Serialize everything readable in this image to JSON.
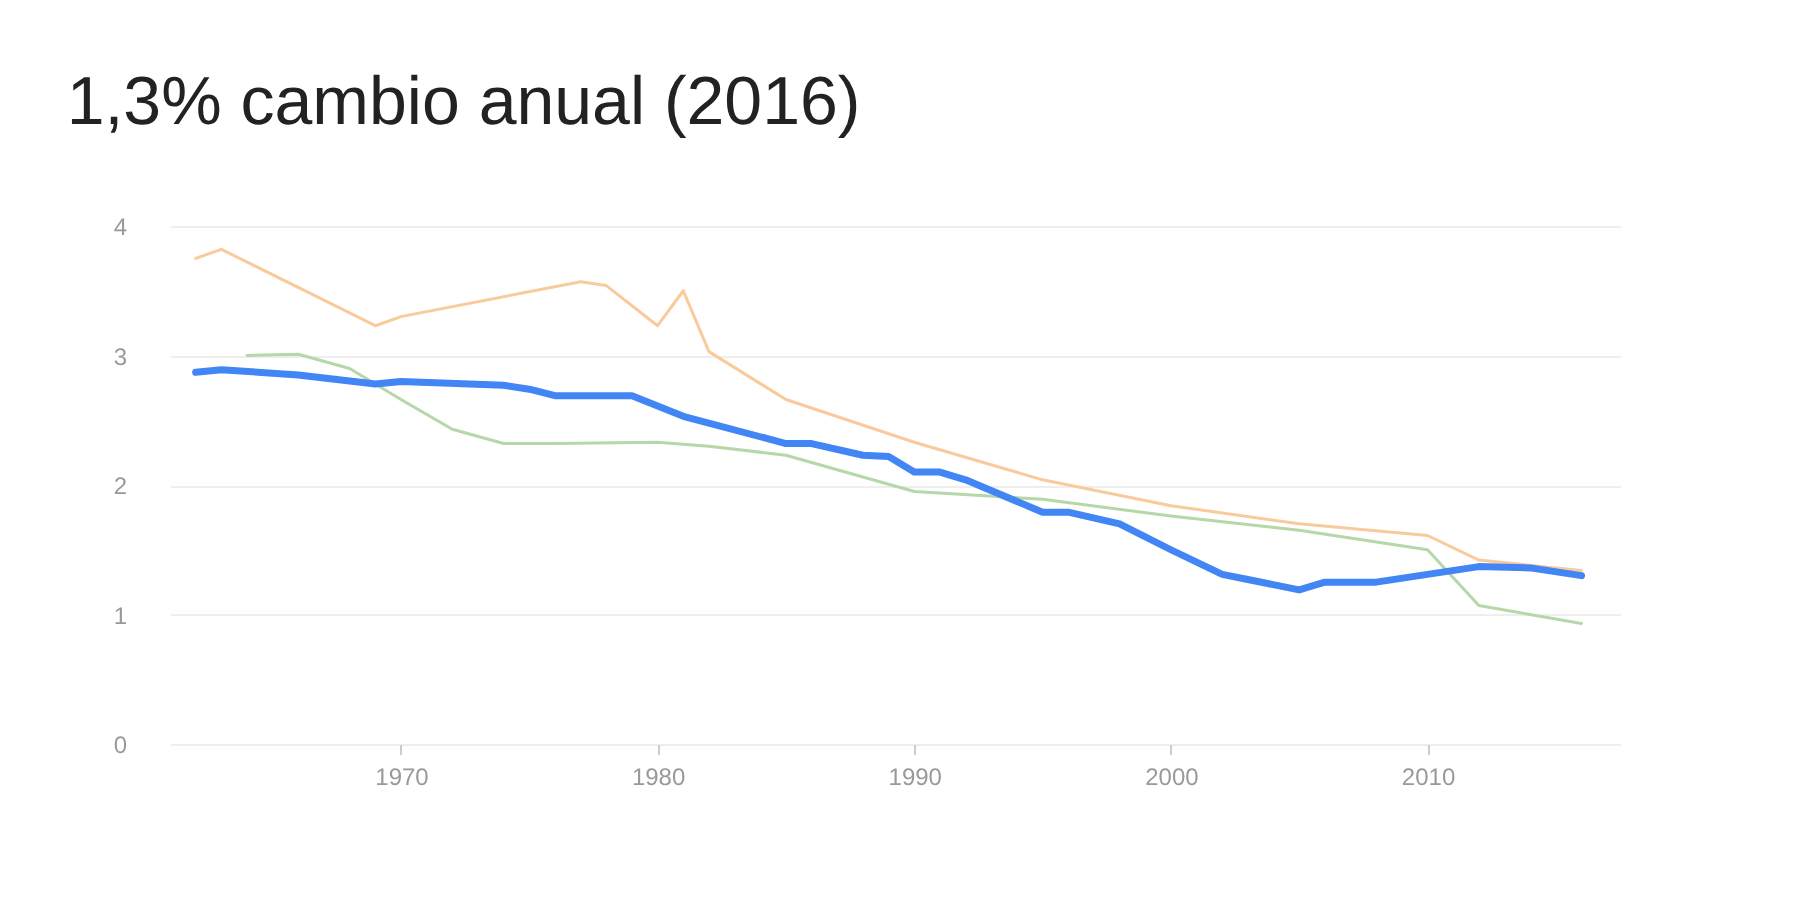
{
  "chart_data": {
    "type": "line",
    "title": "1,3% cambio anual (2016)",
    "xlim": [
      1961,
      2017.5
    ],
    "xticks": [
      1970,
      1980,
      1990,
      2000,
      2010
    ],
    "ylim": [
      0,
      4
    ],
    "yticks": [
      0,
      1,
      2,
      3,
      4
    ],
    "grid": "y",
    "marker": "none",
    "line_style": "solid",
    "series": [
      {
        "color": "#f9cb9c",
        "x": [
          1962,
          1963,
          1969,
          1970,
          1977,
          1978,
          1980,
          1981,
          1982,
          1985,
          1990,
          1995,
          2000,
          2005,
          2010,
          2012,
          2016
        ],
        "values": [
          3.75,
          3.82,
          3.23,
          3.3,
          3.57,
          3.54,
          3.23,
          3.5,
          3.03,
          2.66,
          2.33,
          2.04,
          1.84,
          1.7,
          1.61,
          1.42,
          1.34
        ]
      },
      {
        "color": "#b6d7a8",
        "x": [
          1964,
          1966,
          1968,
          1970,
          1972,
          1974,
          1976,
          1980,
          1982,
          1985,
          1990,
          1995,
          2000,
          2005,
          2010,
          2012,
          2016
        ],
        "values": [
          3.0,
          3.01,
          2.9,
          2.66,
          2.43,
          2.32,
          2.32,
          2.33,
          2.3,
          2.23,
          1.95,
          1.89,
          1.76,
          1.65,
          1.5,
          1.07,
          0.93
        ]
      },
      {
        "color": "#4285f4",
        "x": [
          1962,
          1963,
          1966,
          1969,
          1970,
          1974,
          1975,
          1976,
          1979,
          1981,
          1985,
          1986,
          1988,
          1989,
          1990,
          1991,
          1992,
          1995,
          1996,
          1998,
          2000,
          2002,
          2003,
          2005,
          2006,
          2008,
          2010,
          2012,
          2014,
          2016
        ],
        "values": [
          2.87,
          2.89,
          2.85,
          2.78,
          2.8,
          2.77,
          2.74,
          2.69,
          2.69,
          2.53,
          2.32,
          2.32,
          2.23,
          2.22,
          2.1,
          2.1,
          2.04,
          1.79,
          1.79,
          1.7,
          1.5,
          1.31,
          1.27,
          1.19,
          1.25,
          1.25,
          1.31,
          1.37,
          1.36,
          1.3
        ]
      }
    ]
  }
}
